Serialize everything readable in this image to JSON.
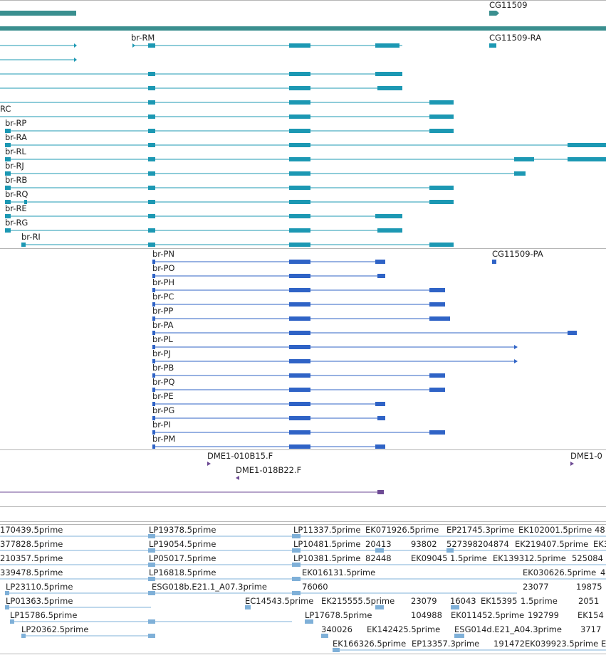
{
  "colors": {
    "gene": "#3a8f8f",
    "transcript": "#1c98b3",
    "cds": "#2f63c6",
    "clone": "#6d4a94",
    "est": "#7fb0d8",
    "divider": "#b5b5b5"
  },
  "gene_track": {
    "labels": [
      "CG11509"
    ]
  },
  "transcript_track": {
    "labels": [
      "CG11509-RA",
      "br-RM",
      "RC",
      "br-RP",
      "br-RA",
      "br-RL",
      "br-RJ",
      "br-RB",
      "br-RQ",
      "br-RE",
      "br-RG",
      "br-RI"
    ]
  },
  "cds_track": {
    "labels": [
      "br-PN",
      "CG11509-PA",
      "br-PO",
      "br-PH",
      "br-PC",
      "br-PP",
      "br-PA",
      "br-PL",
      "br-PJ",
      "br-PB",
      "br-PQ",
      "br-PE",
      "br-PG",
      "br-PI",
      "br-PM"
    ]
  },
  "clone_track": {
    "labels": [
      "DME1-010B15.F",
      "DME1-0",
      "DME1-018B22.F"
    ]
  },
  "est_track": {
    "labels": [
      "170439.5prime",
      "LP19378.5prime",
      "LP11337.5prime",
      "EK071926.5prime",
      "EP21745.3prime",
      "EK102001.5prime",
      "48",
      "377828.5prime",
      "LP19054.5prime",
      "LP10481.5prime",
      "20413",
      "93802",
      "527398204874",
      "EK219407.5prime",
      "EK3",
      "210357.5prime",
      "LP05017.5prime",
      "LP10381.5prime",
      "82448",
      "EK09045",
      "1.5prime",
      "EK13931",
      "2.5prime",
      "525084",
      "339478.5prime",
      "LP16818.5prime",
      "EK016131.5prime",
      "EK030626.5prime",
      "4",
      "LP23110.5prime",
      "ESG018b.E21.1_A07.3prime",
      "76060",
      "23077",
      "19875",
      "LP01363.5prime",
      "EC14543.5prime",
      "EK215555.5prime",
      "23079",
      "16043",
      "EK15395",
      "1.5prime",
      "2051",
      "LP15786.5prime",
      "LP17678.5prime",
      "104988",
      "EK011452.5prime",
      "192799",
      "EK154",
      "LP20362.5prime",
      "340026",
      "EK142425.5prime",
      "ESG014d.E21_A04.3prime",
      "3717",
      "EK166326.5prime",
      "EP13357.3prime",
      "191472",
      "EK039923.5prime",
      "E"
    ]
  }
}
